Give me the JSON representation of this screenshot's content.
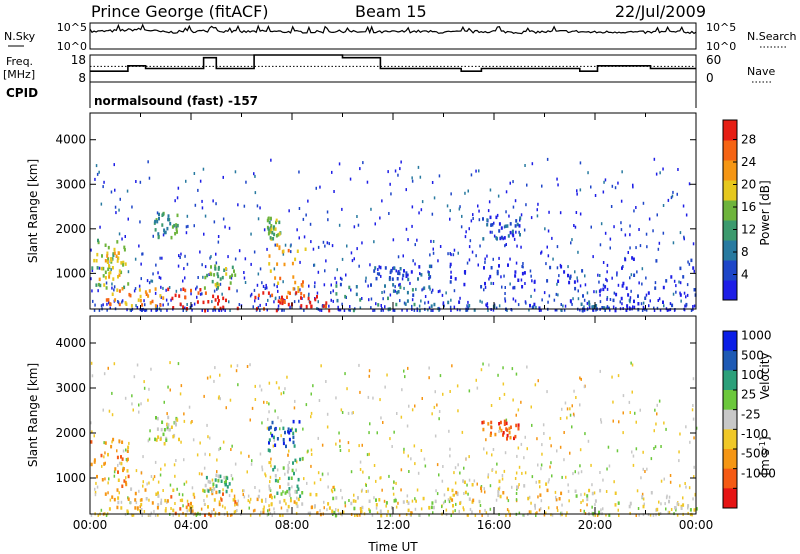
{
  "header": {
    "station": "Prince George (fitACF)",
    "beam": "Beam 15",
    "date": "22/Jul/2009"
  },
  "top_panels": {
    "nsky_label": "N.Sky",
    "nsearch_label": "N.Search",
    "count_ticks": [
      "10^5",
      "10^0"
    ],
    "freq_label": "Freq.",
    "freq_unit": "[MHz]",
    "freq_ticks": [
      "18",
      "8"
    ],
    "nave_label": "Nave",
    "nave_ticks": [
      "60",
      "0"
    ],
    "cpid_label": "CPID",
    "cpid_value": "normalsound (fast) -157"
  },
  "colors": {
    "power_scale": [
      "#1e1ee6",
      "#1e46c8",
      "#287aa0",
      "#3c9a6e",
      "#6eb43c",
      "#e6c81e",
      "#f59614",
      "#f56414",
      "#e61e14"
    ],
    "velocity_scale": [
      "#0a1ee6",
      "#1e5ab4",
      "#2ca07a",
      "#6cc83c",
      "#c8c8c8",
      "#f0c828",
      "#f59614",
      "#f55a14",
      "#e61414"
    ]
  },
  "chart_data": [
    {
      "type": "line",
      "title": "N.Sky / N.Search",
      "x_range": [
        0,
        24
      ],
      "y_range_log10": [
        0,
        5
      ],
      "series": [
        {
          "name": "N.Sky",
          "x": [
            0,
            1,
            2,
            3,
            4,
            5,
            6,
            7,
            8,
            9,
            10,
            11,
            12,
            13,
            14,
            15,
            16,
            17,
            18,
            19,
            20,
            21,
            22,
            23,
            24
          ],
          "y_log10": [
            3.3,
            3.5,
            3.8,
            3.2,
            3.4,
            3.5,
            3.3,
            3.4,
            3.3,
            3.3,
            3.4,
            3.2,
            3.3,
            3.4,
            3.2,
            3.3,
            3.4,
            3.2,
            3.3,
            3.4,
            3.2,
            3.3,
            3.2,
            3.3,
            3.2
          ]
        },
        {
          "name": "N.Search",
          "x": [
            0,
            24
          ],
          "y_log10": [
            0,
            0
          ]
        }
      ]
    },
    {
      "type": "line",
      "title": "Freq. [MHz] / Nave",
      "x_range": [
        0,
        24
      ],
      "freq_range": [
        8,
        18
      ],
      "nave_range": [
        0,
        60
      ],
      "freq_dotted": 13.8,
      "series": [
        {
          "name": "Freq.",
          "x": [
            0,
            1.1,
            1.5,
            2.2,
            4.0,
            4.5,
            5.0,
            6.0,
            6.5,
            9.2,
            10.0,
            11.5,
            14.0,
            14.7,
            15.5,
            17.7,
            19.4,
            20.1,
            22.2,
            24
          ],
          "y": [
            12,
            12,
            14,
            13,
            13,
            17,
            13,
            13,
            18,
            18,
            17,
            13,
            13,
            12,
            13,
            13,
            12,
            14,
            13,
            13
          ]
        },
        {
          "name": "Nave",
          "x": [
            0,
            3.5,
            4.0,
            5.0,
            6.0,
            8.0,
            9.0,
            9.5,
            12.0,
            13.5,
            15.0,
            16.5,
            18.0,
            20.0,
            22.0,
            24
          ],
          "y": [
            28,
            28,
            40,
            32,
            28,
            28,
            36,
            28,
            28,
            18,
            22,
            20,
            24,
            16,
            18,
            20
          ]
        }
      ]
    },
    {
      "type": "heatmap",
      "title": "Power [dB]",
      "xlabel": "",
      "ylabel": "Slant Range [km]",
      "x_range": [
        0,
        24
      ],
      "y_range": [
        200,
        4600
      ],
      "y_ticks": [
        1000,
        2000,
        3000,
        4000
      ],
      "colorbar_label": "Power [dB]",
      "colorbar_ticks": [
        4,
        8,
        12,
        16,
        20,
        24,
        28
      ],
      "regions": [
        {
          "t": [
            0.0,
            1.5
          ],
          "r": [
            700,
            1800
          ],
          "level": 4
        },
        {
          "t": [
            0.2,
            1.2
          ],
          "r": [
            900,
            1500
          ],
          "level": 5
        },
        {
          "t": [
            0.5,
            3.0
          ],
          "r": [
            300,
            700
          ],
          "level": 6
        },
        {
          "t": [
            2.5,
            3.5
          ],
          "r": [
            1800,
            2400
          ],
          "level": 3
        },
        {
          "t": [
            3.0,
            6.0
          ],
          "r": [
            200,
            700
          ],
          "level": 8
        },
        {
          "t": [
            4.5,
            5.8
          ],
          "r": [
            700,
            1200
          ],
          "level": 4
        },
        {
          "t": [
            6.5,
            9.5
          ],
          "r": [
            200,
            600
          ],
          "level": 8
        },
        {
          "t": [
            7.0,
            8.5
          ],
          "r": [
            500,
            1700
          ],
          "level": 6
        },
        {
          "t": [
            7.0,
            7.5
          ],
          "r": [
            1800,
            2300
          ],
          "level": 4
        },
        {
          "t": [
            9.5,
            14.0
          ],
          "r": [
            200,
            800
          ],
          "level": 2
        },
        {
          "t": [
            11.0,
            13.5
          ],
          "r": [
            900,
            1200
          ],
          "level": 1
        },
        {
          "t": [
            14.0,
            19.0
          ],
          "r": [
            700,
            1300
          ],
          "level": 0
        },
        {
          "t": [
            15.5,
            17.0
          ],
          "r": [
            1800,
            2300
          ],
          "level": 1
        },
        {
          "t": [
            19.0,
            24.0
          ],
          "r": [
            400,
            1400
          ],
          "level": 0
        },
        {
          "t": [
            14.0,
            24.0
          ],
          "r": [
            200,
            400
          ],
          "level": 1
        }
      ]
    },
    {
      "type": "heatmap",
      "title": "Velocity [m s-1]",
      "xlabel": "Time UT",
      "ylabel": "Slant Range [km]",
      "x_range": [
        0,
        24
      ],
      "x_ticks": [
        "00:00",
        "04:00",
        "08:00",
        "12:00",
        "16:00",
        "20:00",
        "00:00"
      ],
      "y_range": [
        200,
        4600
      ],
      "y_ticks": [
        1000,
        2000,
        3000,
        4000
      ],
      "colorbar_label": "Velocity",
      "colorbar_unit": "[m s",
      "colorbar_unit_exp": "-1",
      "colorbar_ticks": [
        "1000",
        "500",
        "100",
        "25",
        "-25",
        "-100",
        "-500",
        "-1000"
      ],
      "regions": [
        {
          "t": [
            0.0,
            1.5
          ],
          "r": [
            700,
            1900
          ],
          "level": 6
        },
        {
          "t": [
            0.5,
            3.0
          ],
          "r": [
            300,
            800
          ],
          "level": 5
        },
        {
          "t": [
            2.5,
            3.5
          ],
          "r": [
            1800,
            2400
          ],
          "level": 4
        },
        {
          "t": [
            3.0,
            6.0
          ],
          "r": [
            200,
            800
          ],
          "level": 6
        },
        {
          "t": [
            4.5,
            5.5
          ],
          "r": [
            700,
            1100
          ],
          "level": 3
        },
        {
          "t": [
            6.5,
            9.5
          ],
          "r": [
            200,
            700
          ],
          "level": 5
        },
        {
          "t": [
            7.0,
            8.5
          ],
          "r": [
            600,
            1600
          ],
          "level": 3
        },
        {
          "t": [
            7.0,
            8.3
          ],
          "r": [
            1600,
            2300
          ],
          "level": 1
        },
        {
          "t": [
            9.5,
            14.0
          ],
          "r": [
            200,
            600
          ],
          "level": 4
        },
        {
          "t": [
            14.0,
            19.0
          ],
          "r": [
            400,
            1000
          ],
          "level": 5
        },
        {
          "t": [
            15.5,
            17.0
          ],
          "r": [
            1900,
            2300
          ],
          "level": 7
        },
        {
          "t": [
            19.0,
            24.0
          ],
          "r": [
            200,
            800
          ],
          "level": 4
        }
      ]
    }
  ]
}
